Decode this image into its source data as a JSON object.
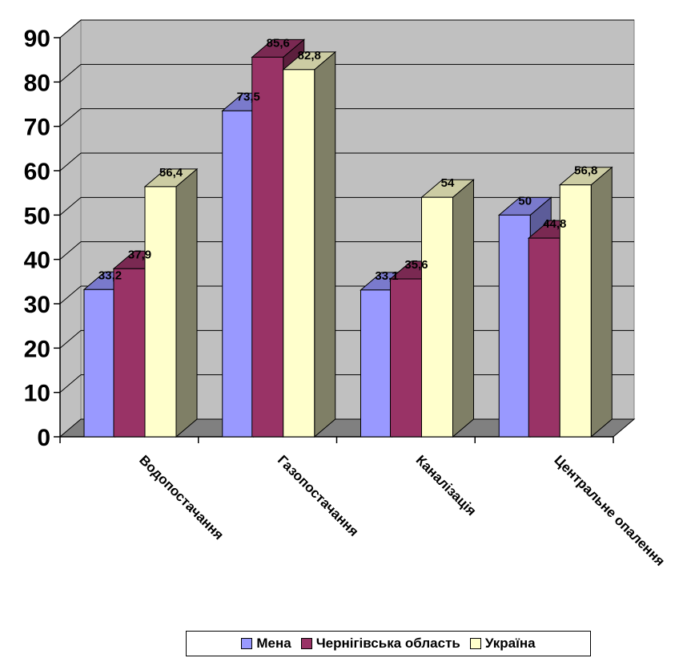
{
  "chart_data": {
    "type": "bar",
    "categories": [
      "Водопостачання",
      "Газопостачання",
      "Каналізація",
      "Центральне опалення"
    ],
    "series": [
      {
        "name": "Мена",
        "values": [
          33.2,
          73.5,
          33.1,
          50
        ],
        "labels": [
          "33,2",
          "73,5",
          "33,1",
          "50"
        ],
        "color": "#9999ff",
        "side_color": "#5c5c99",
        "top_color": "#7a7acc"
      },
      {
        "name": "Чернігівська область",
        "values": [
          37.9,
          85.6,
          35.6,
          44.8
        ],
        "labels": [
          "37,9",
          "85,6",
          "35,6",
          "44,8"
        ],
        "color": "#993366",
        "side_color": "#5c1f3d",
        "top_color": "#7a2952"
      },
      {
        "name": "Україна",
        "values": [
          56.4,
          82.8,
          54,
          56.8
        ],
        "labels": [
          "56,4",
          "82,8",
          "54",
          "56,8"
        ],
        "color": "#ffffcc",
        "side_color": "#7f7f66",
        "top_color": "#cccca3"
      }
    ],
    "yticks": [
      "0",
      "10",
      "20",
      "30",
      "40",
      "50",
      "60",
      "70",
      "80",
      "90"
    ],
    "ylim": [
      0,
      90
    ],
    "grid": true,
    "legend_position": "bottom",
    "wall_color": "#c0c0c0",
    "floor_color": "#808080"
  }
}
